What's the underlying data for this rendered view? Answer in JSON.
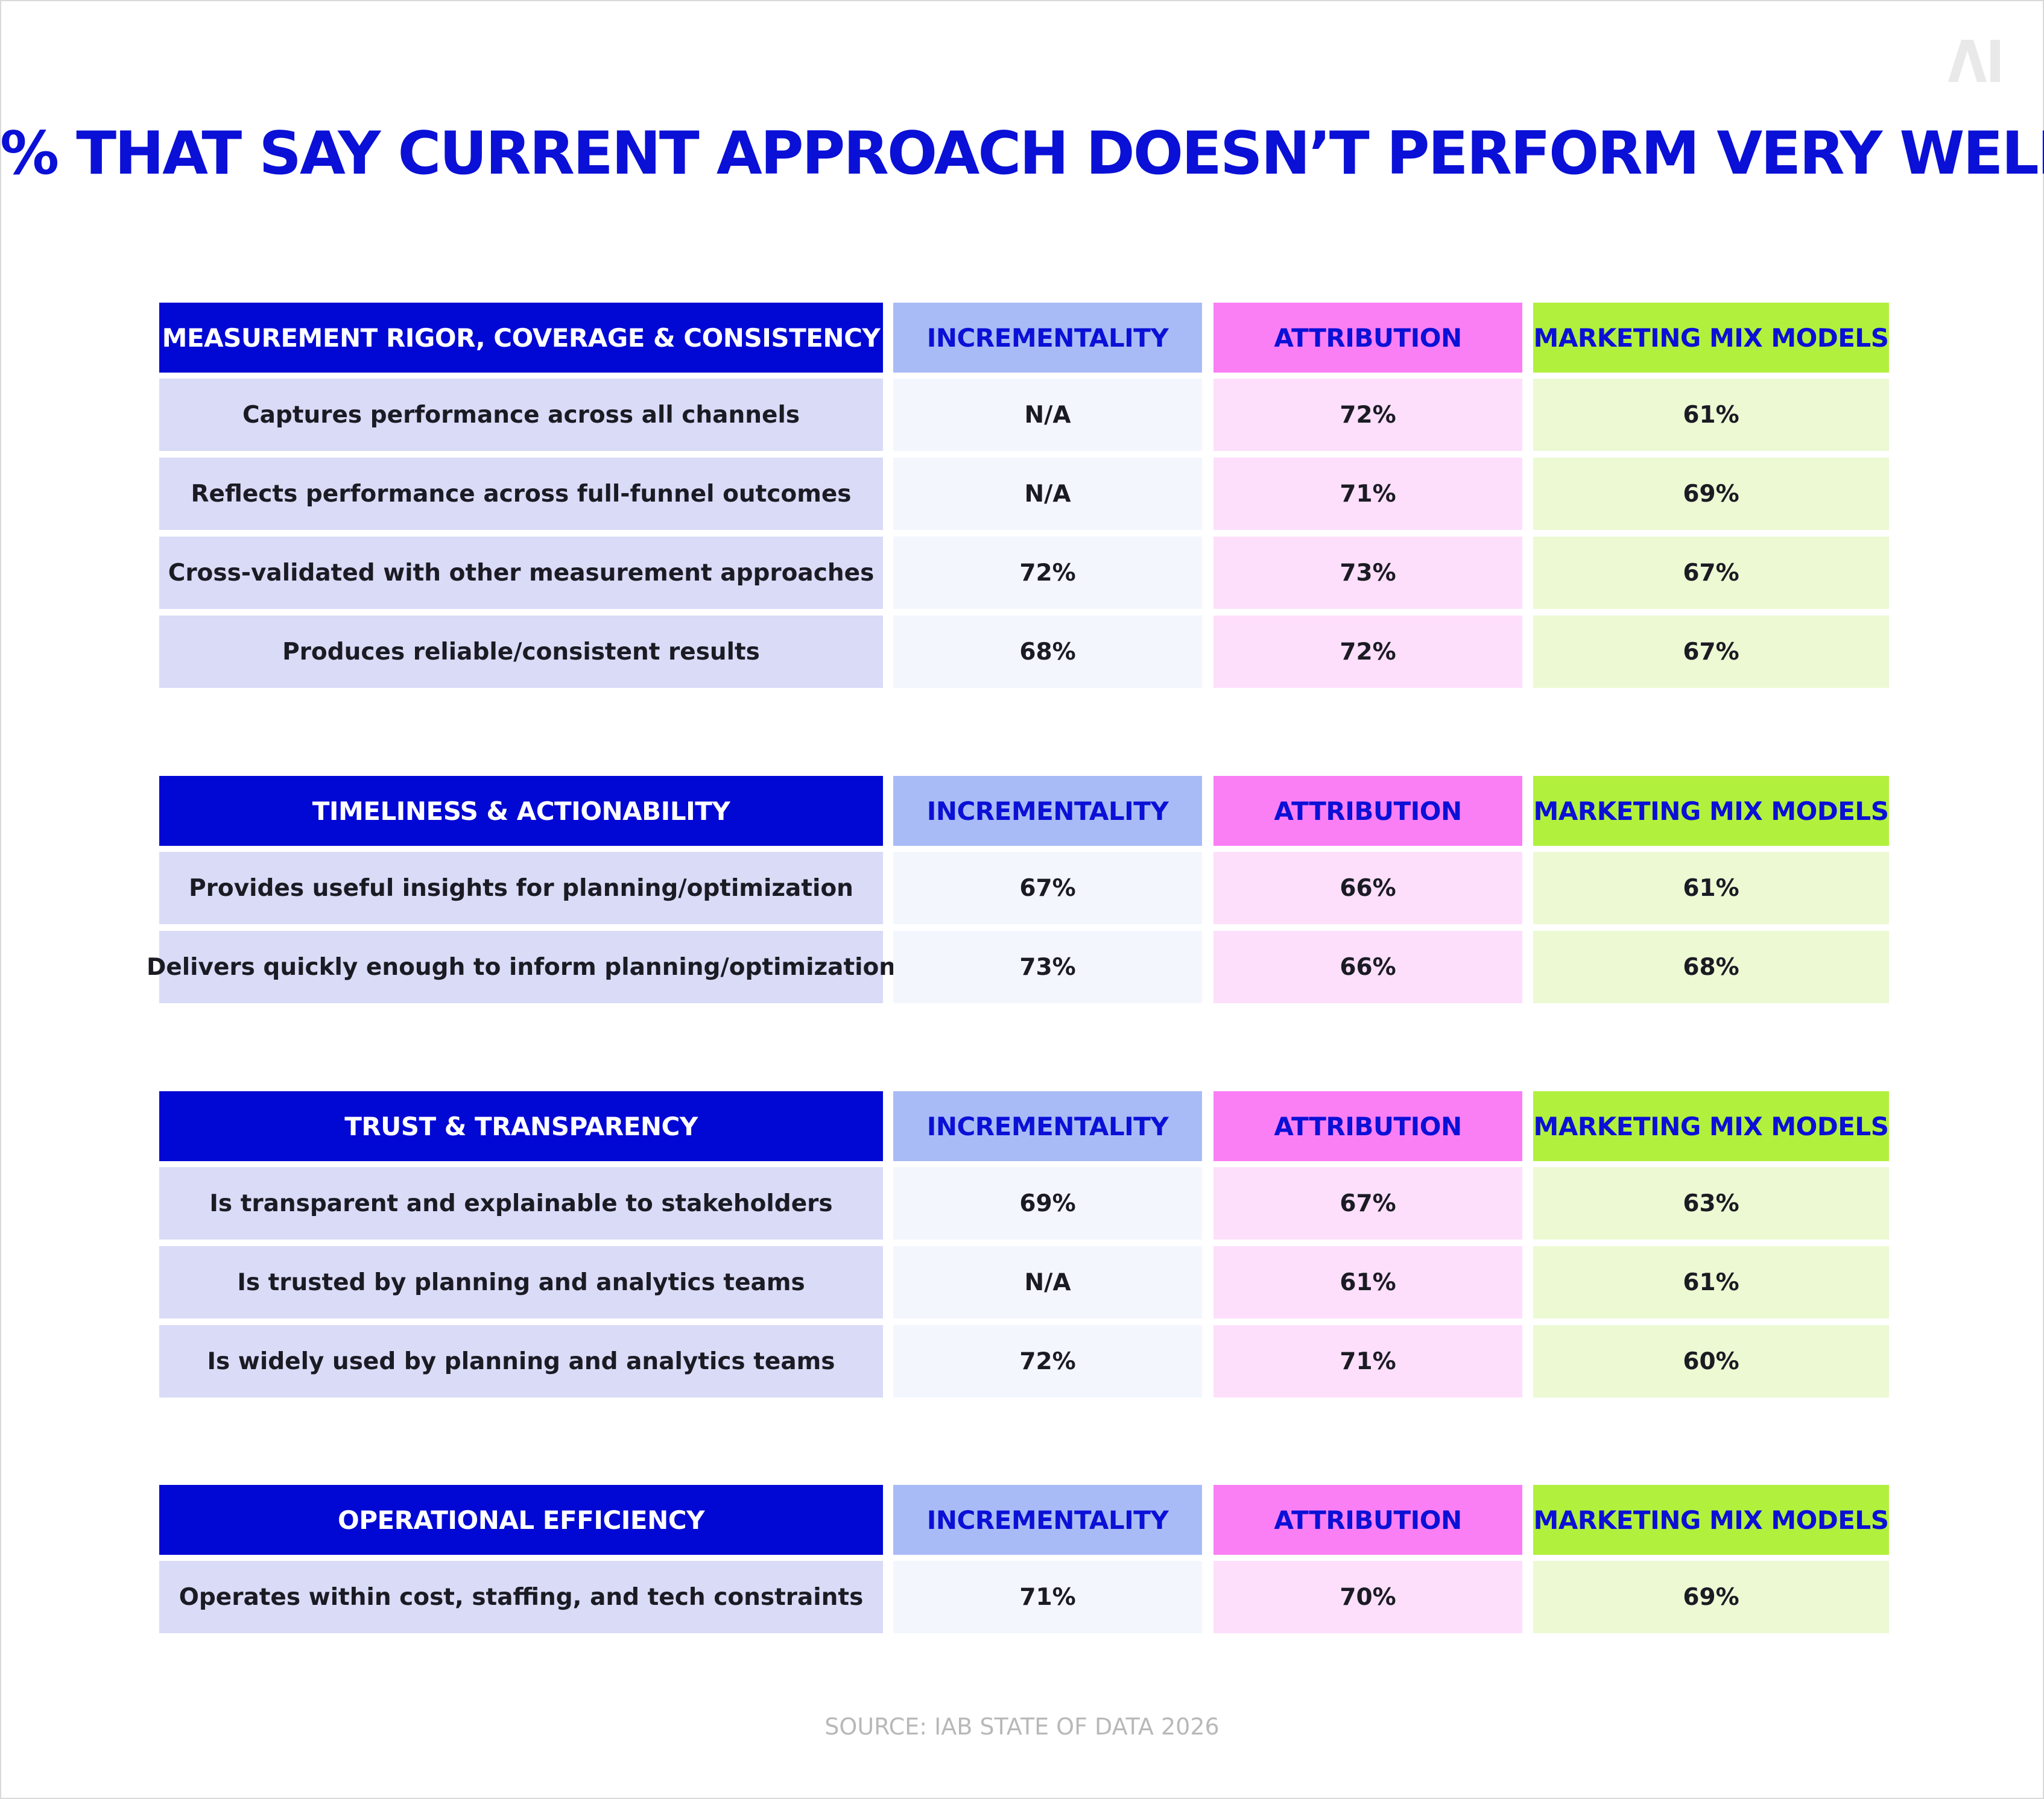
{
  "logo_text": "AI",
  "title": "% THAT SAY CURRENT APPROACH DOESN’T PERFORM VERY WELL",
  "source": "SOURCE: IAB STATE OF DATA 2026",
  "colors": {
    "title_blue": "#0a10d6",
    "category_header": "#0208d4",
    "incrementality_header": "#a9bbf6",
    "attribution_header": "#fa7ff5",
    "mmm_header": "#b2f03e"
  },
  "chart_data": {
    "type": "table",
    "title": "% THAT SAY CURRENT APPROACH DOESN’T PERFORM VERY WELL",
    "columns": [
      "INCREMENTALITY",
      "ATTRIBUTION",
      "MARKETING MIX MODELS"
    ],
    "sections": [
      {
        "category": "MEASUREMENT RIGOR, COVERAGE & CONSISTENCY",
        "rows": [
          {
            "label": "Captures performance across all channels",
            "values": [
              "N/A",
              "72%",
              "61%"
            ]
          },
          {
            "label": "Reflects performance across full-funnel outcomes",
            "values": [
              "N/A",
              "71%",
              "69%"
            ]
          },
          {
            "label": "Cross-validated with other measurement approaches",
            "values": [
              "72%",
              "73%",
              "67%"
            ]
          },
          {
            "label": "Produces reliable/consistent results",
            "values": [
              "68%",
              "72%",
              "67%"
            ]
          }
        ]
      },
      {
        "category": "TIMELINESS & ACTIONABILITY",
        "rows": [
          {
            "label": "Provides useful insights for planning/optimization",
            "values": [
              "67%",
              "66%",
              "61%"
            ]
          },
          {
            "label": "Delivers quickly enough to inform planning/optimization",
            "values": [
              "73%",
              "66%",
              "68%"
            ]
          }
        ]
      },
      {
        "category": "TRUST & TRANSPARENCY",
        "rows": [
          {
            "label": "Is transparent and explainable to stakeholders",
            "values": [
              "69%",
              "67%",
              "63%"
            ]
          },
          {
            "label": "Is trusted by planning and analytics teams",
            "values": [
              "N/A",
              "61%",
              "61%"
            ]
          },
          {
            "label": "Is widely used by planning and analytics teams",
            "values": [
              "72%",
              "71%",
              "60%"
            ]
          }
        ]
      },
      {
        "category": "OPERATIONAL EFFICIENCY",
        "rows": [
          {
            "label": "Operates within cost, staffing, and tech constraints",
            "values": [
              "71%",
              "70%",
              "69%"
            ]
          }
        ]
      }
    ]
  }
}
